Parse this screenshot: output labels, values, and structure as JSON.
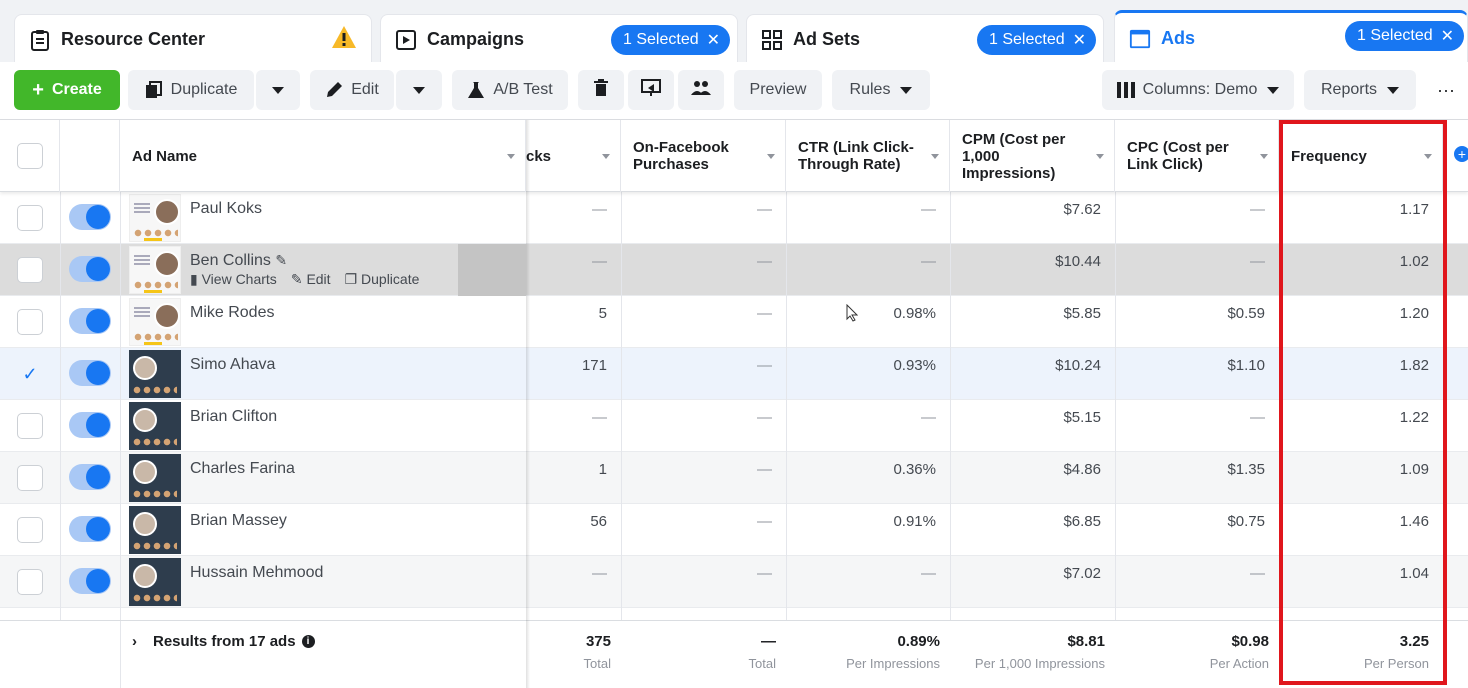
{
  "tabs": [
    {
      "label": "Resource Center",
      "icon": "clipboard-icon",
      "warning": true
    },
    {
      "label": "Campaigns",
      "icon": "campaign-icon",
      "selected": "1 Selected"
    },
    {
      "label": "Ad Sets",
      "icon": "grid-icon",
      "selected": "1 Selected"
    },
    {
      "label": "Ads",
      "icon": "ad-icon",
      "selected": "1 Selected",
      "active": true
    }
  ],
  "toolbar": {
    "create": "Create",
    "duplicate": "Duplicate",
    "edit": "Edit",
    "ab_test": "A/B Test",
    "preview": "Preview",
    "rules": "Rules",
    "columns": "Columns: Demo",
    "reports": "Reports",
    "more": "···"
  },
  "columns": {
    "ad_name": "Ad Name",
    "clicks": "cks",
    "purchases": "On-Facebook Purchases",
    "ctr": "CTR (Link Click-Through Rate)",
    "cpm": "CPM (Cost per 1,000 Impressions)",
    "cpc": "CPC (Cost per Link Click)",
    "frequency": "Frequency"
  },
  "row_actions": {
    "view_charts": "View Charts",
    "edit": "Edit",
    "duplicate": "Duplicate"
  },
  "rows": [
    {
      "name": "Paul Koks",
      "clicks": "—",
      "purchases": "—",
      "ctr": "—",
      "cpm": "$7.62",
      "cpc": "—",
      "frequency": "1.17",
      "thumb": "light"
    },
    {
      "name": "Ben Collins",
      "clicks": "—",
      "purchases": "—",
      "ctr": "—",
      "cpm": "$10.44",
      "cpc": "—",
      "frequency": "1.02",
      "thumb": "light",
      "hover": true
    },
    {
      "name": "Mike Rodes",
      "clicks": "5",
      "purchases": "—",
      "ctr": "0.98%",
      "cpm": "$5.85",
      "cpc": "$0.59",
      "frequency": "1.20",
      "thumb": "light"
    },
    {
      "name": "Simo Ahava",
      "clicks": "171",
      "purchases": "—",
      "ctr": "0.93%",
      "cpm": "$10.24",
      "cpc": "$1.10",
      "frequency": "1.82",
      "thumb": "dark",
      "checked": true
    },
    {
      "name": "Brian Clifton",
      "clicks": "—",
      "purchases": "—",
      "ctr": "—",
      "cpm": "$5.15",
      "cpc": "—",
      "frequency": "1.22",
      "thumb": "dark"
    },
    {
      "name": "Charles Farina",
      "clicks": "1",
      "purchases": "—",
      "ctr": "0.36%",
      "cpm": "$4.86",
      "cpc": "$1.35",
      "frequency": "1.09",
      "thumb": "dark"
    },
    {
      "name": "Brian Massey",
      "clicks": "56",
      "purchases": "—",
      "ctr": "0.91%",
      "cpm": "$6.85",
      "cpc": "$0.75",
      "frequency": "1.46",
      "thumb": "dark"
    },
    {
      "name": "Hussain Mehmood",
      "clicks": "—",
      "purchases": "—",
      "ctr": "—",
      "cpm": "$7.02",
      "cpc": "—",
      "frequency": "1.04",
      "thumb": "dark"
    }
  ],
  "footer": {
    "label": "Results from 17 ads",
    "clicks": {
      "value": "375",
      "sub": "Total"
    },
    "purchases": {
      "value": "—",
      "sub": "Total"
    },
    "ctr": {
      "value": "0.89%",
      "sub": "Per Impressions"
    },
    "cpm": {
      "value": "$8.81",
      "sub": "Per 1,000 Impressions"
    },
    "cpc": {
      "value": "$0.98",
      "sub": "Per Action"
    },
    "frequency": {
      "value": "3.25",
      "sub": "Per Person"
    }
  },
  "colors": {
    "accent": "#1877f2",
    "create": "#42b72a",
    "highlight": "#e0161c"
  }
}
